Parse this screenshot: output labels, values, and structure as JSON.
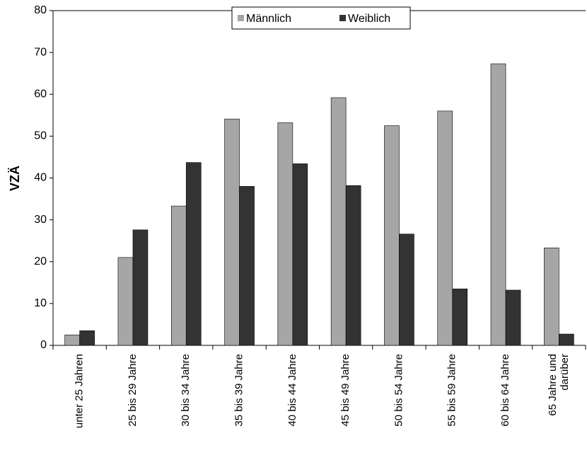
{
  "chart_data": {
    "type": "bar",
    "ylabel": "VZÄ",
    "ylim": [
      0,
      80
    ],
    "yticks": [
      0,
      10,
      20,
      30,
      40,
      50,
      60,
      70,
      80
    ],
    "grid": false,
    "legend": "top-center",
    "categories": [
      [
        "unter 25 Jahren"
      ],
      [
        "25 bis 29 Jahre"
      ],
      [
        "30 bis 34 Jahre"
      ],
      [
        "35 bis 39 Jahre"
      ],
      [
        "40 bis 44 Jahre"
      ],
      [
        "45 bis 49 Jahre"
      ],
      [
        "50 bis 54 Jahre"
      ],
      [
        "55 bis 59 Jahre"
      ],
      [
        "60 bis 64 Jahre"
      ],
      [
        "65 Jahre und",
        "darüber"
      ]
    ],
    "series": [
      {
        "name": "Männlich",
        "color": "#a6a6a6",
        "values": [
          2.5,
          21,
          33.3,
          54.1,
          53.2,
          59.2,
          52.5,
          56,
          67.3,
          23.3
        ]
      },
      {
        "name": "Weiblich",
        "color": "#333333",
        "values": [
          3.5,
          27.6,
          43.7,
          38,
          43.4,
          38.2,
          26.6,
          13.5,
          13.2,
          2.7
        ]
      }
    ]
  }
}
